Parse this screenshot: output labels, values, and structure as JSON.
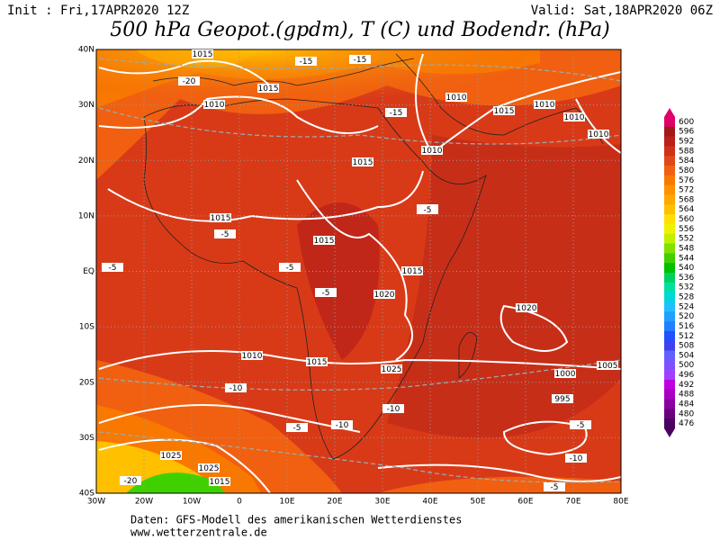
{
  "header": {
    "init": "Init : Fri,17APR2020 12Z",
    "valid": "Valid: Sat,18APR2020 06Z",
    "title": "500 hPa Geopot.(gpdm), T (C) und Bodendr. (hPa)"
  },
  "map": {
    "lon_ticks": [
      {
        "value": -30,
        "label": "30W"
      },
      {
        "value": -20,
        "label": "20W"
      },
      {
        "value": -10,
        "label": "10W"
      },
      {
        "value": 0,
        "label": "0"
      },
      {
        "value": 10,
        "label": "10E"
      },
      {
        "value": 20,
        "label": "20E"
      },
      {
        "value": 30,
        "label": "30E"
      },
      {
        "value": 40,
        "label": "40E"
      },
      {
        "value": 50,
        "label": "50E"
      },
      {
        "value": 60,
        "label": "60E"
      },
      {
        "value": 70,
        "label": "70E"
      },
      {
        "value": 80,
        "label": "80E"
      }
    ],
    "lat_ticks": [
      {
        "value": 40,
        "label": "40N"
      },
      {
        "value": 30,
        "label": "30N"
      },
      {
        "value": 20,
        "label": "20N"
      },
      {
        "value": 10,
        "label": "10N"
      },
      {
        "value": 0,
        "label": "EQ"
      },
      {
        "value": -10,
        "label": "10S"
      },
      {
        "value": -20,
        "label": "20S"
      },
      {
        "value": -30,
        "label": "30S"
      },
      {
        "value": -40,
        "label": "40S"
      }
    ],
    "lonlim": [
      -30,
      80
    ],
    "latlim": [
      40,
      -40
    ],
    "contour_labels": [
      "1015",
      "1010",
      "1015",
      "1010",
      "1015",
      "1010",
      "1010",
      "1010",
      "1015",
      "1010",
      "1015",
      "1015",
      "1010",
      "1015",
      "1020",
      "1025",
      "1020",
      "1015",
      "1010",
      "1005",
      "1000",
      "995",
      "1025",
      "1025",
      "1015",
      "-5",
      "-5",
      "-5",
      "-5",
      "-5",
      "-10",
      "-10",
      "-10",
      "-15",
      "-15",
      "-15",
      "-20",
      "-20",
      "-10",
      "-5",
      "-5",
      "-5"
    ]
  },
  "colorbar": {
    "levels": [
      600,
      596,
      592,
      588,
      584,
      580,
      576,
      572,
      568,
      564,
      560,
      556,
      552,
      548,
      544,
      540,
      536,
      532,
      528,
      524,
      520,
      516,
      512,
      508,
      504,
      500,
      496,
      492,
      488,
      484,
      480,
      476
    ],
    "colors": [
      "#e0006a",
      "#a01818",
      "#b82018",
      "#d03018",
      "#e04818",
      "#f06010",
      "#f87800",
      "#ff9000",
      "#ffa800",
      "#ffc000",
      "#ffe000",
      "#f0f000",
      "#c0f000",
      "#80e000",
      "#40d000",
      "#00c000",
      "#00d060",
      "#00e0a0",
      "#00d8d8",
      "#20c0ff",
      "#20a0ff",
      "#2080ff",
      "#2050ff",
      "#4040f0",
      "#6060ff",
      "#8050ff",
      "#a040ff",
      "#c000e0",
      "#a800c0",
      "#8a00a0",
      "#6a007e",
      "#4b0060"
    ]
  },
  "footer": {
    "line1": "Daten: GFS-Modell des amerikanischen Wetterdienstes",
    "line2": "www.wetterzentrale.de"
  }
}
